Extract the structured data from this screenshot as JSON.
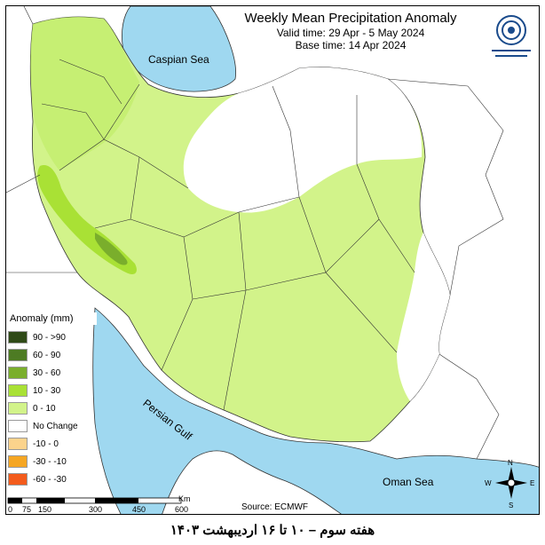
{
  "title": "Weekly Mean Precipitation Anomaly",
  "valid_time": "Valid time: 29 Apr - 5 May 2024",
  "base_time": "Base time: 14 Apr 2024",
  "legend": {
    "title": "Anomaly (mm)",
    "items": [
      {
        "label": "90 - >90",
        "color": "#2f4a17"
      },
      {
        "label": "60 - 90",
        "color": "#4d7b23"
      },
      {
        "label": "30 - 60",
        "color": "#7aae2c"
      },
      {
        "label": "10 - 30",
        "color": "#a9e135"
      },
      {
        "label": "0 - 10",
        "color": "#d2f38a"
      },
      {
        "label": "No Change",
        "color": "#ffffff"
      },
      {
        "label": "-10 - 0",
        "color": "#fbd38c"
      },
      {
        "label": "-30 - -10",
        "color": "#f5a623"
      },
      {
        "label": "-60 - -30",
        "color": "#f35b1c"
      }
    ]
  },
  "colors": {
    "sea": "#9fd8f0",
    "land": "#d2f38a",
    "light_green": "#a9e135",
    "mid_green": "#7aae2c"
  },
  "seas": {
    "caspian": "Caspian Sea",
    "persian_gulf": "Persian Gulf",
    "oman": "Oman Sea"
  },
  "scale": {
    "ticks": [
      "0",
      "75",
      "150",
      "300",
      "450",
      "600"
    ],
    "unit": "Km"
  },
  "compass": {
    "n": "N",
    "e": "E",
    "s": "S",
    "w": "W"
  },
  "source": "Source: ECMWF",
  "footer": "هفته سوم – ۱۰ تا ۱۶ اردیبهشت ۱۴۰۳"
}
